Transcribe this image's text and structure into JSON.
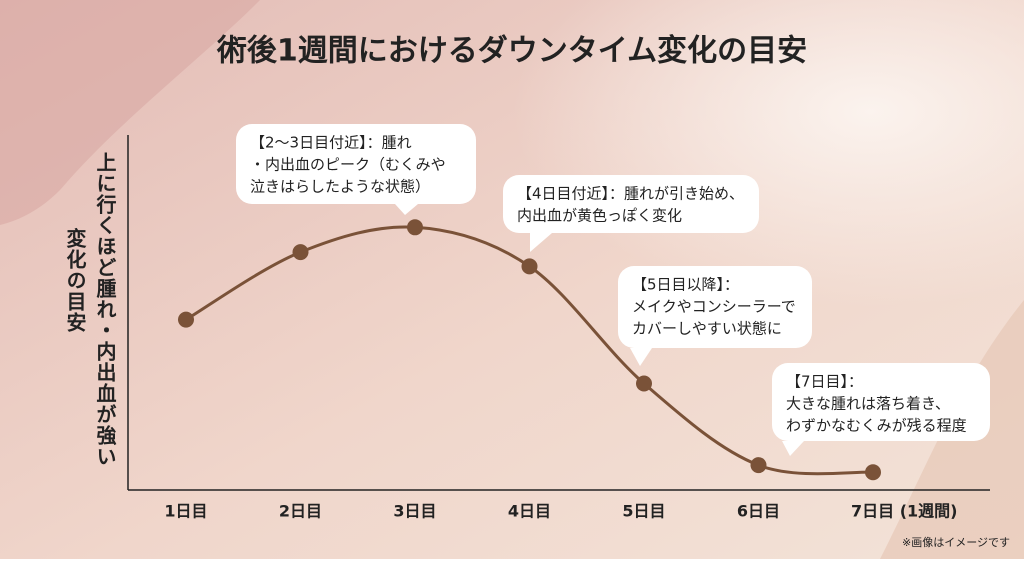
{
  "chart_data": {
    "type": "line",
    "title": "術後1週間におけるダウンタイム変化の目安",
    "y_label": [
      "上に行くほど腫れ・内出血が強い",
      "変化の目安"
    ],
    "categories": [
      "1日目",
      "2日目",
      "3日目",
      "4日目",
      "5日目",
      "6日目",
      "7日目 (1週間)"
    ],
    "values": [
      48,
      67,
      74,
      63,
      30,
      7,
      5
    ],
    "ylim": [
      0,
      100
    ],
    "color": "#7a5238",
    "annotations": [
      [
        "【2〜3日目付近】：腫れ",
        "・内出血のピーク（むくみや",
        "泣きはらしたような状態）"
      ],
      [
        "【4日目付近】：腫れが引き始め、",
        "内出血が黄色っぽく変化"
      ],
      [
        "【5日目以降】：",
        "メイクやコンシーラーで",
        "カバーしやすい状態に"
      ],
      [
        "【7日目】：",
        "大きな腫れは落ち着き、",
        "わずかなむくみが残る程度"
      ]
    ],
    "footnote": "※画像はイメージです"
  }
}
